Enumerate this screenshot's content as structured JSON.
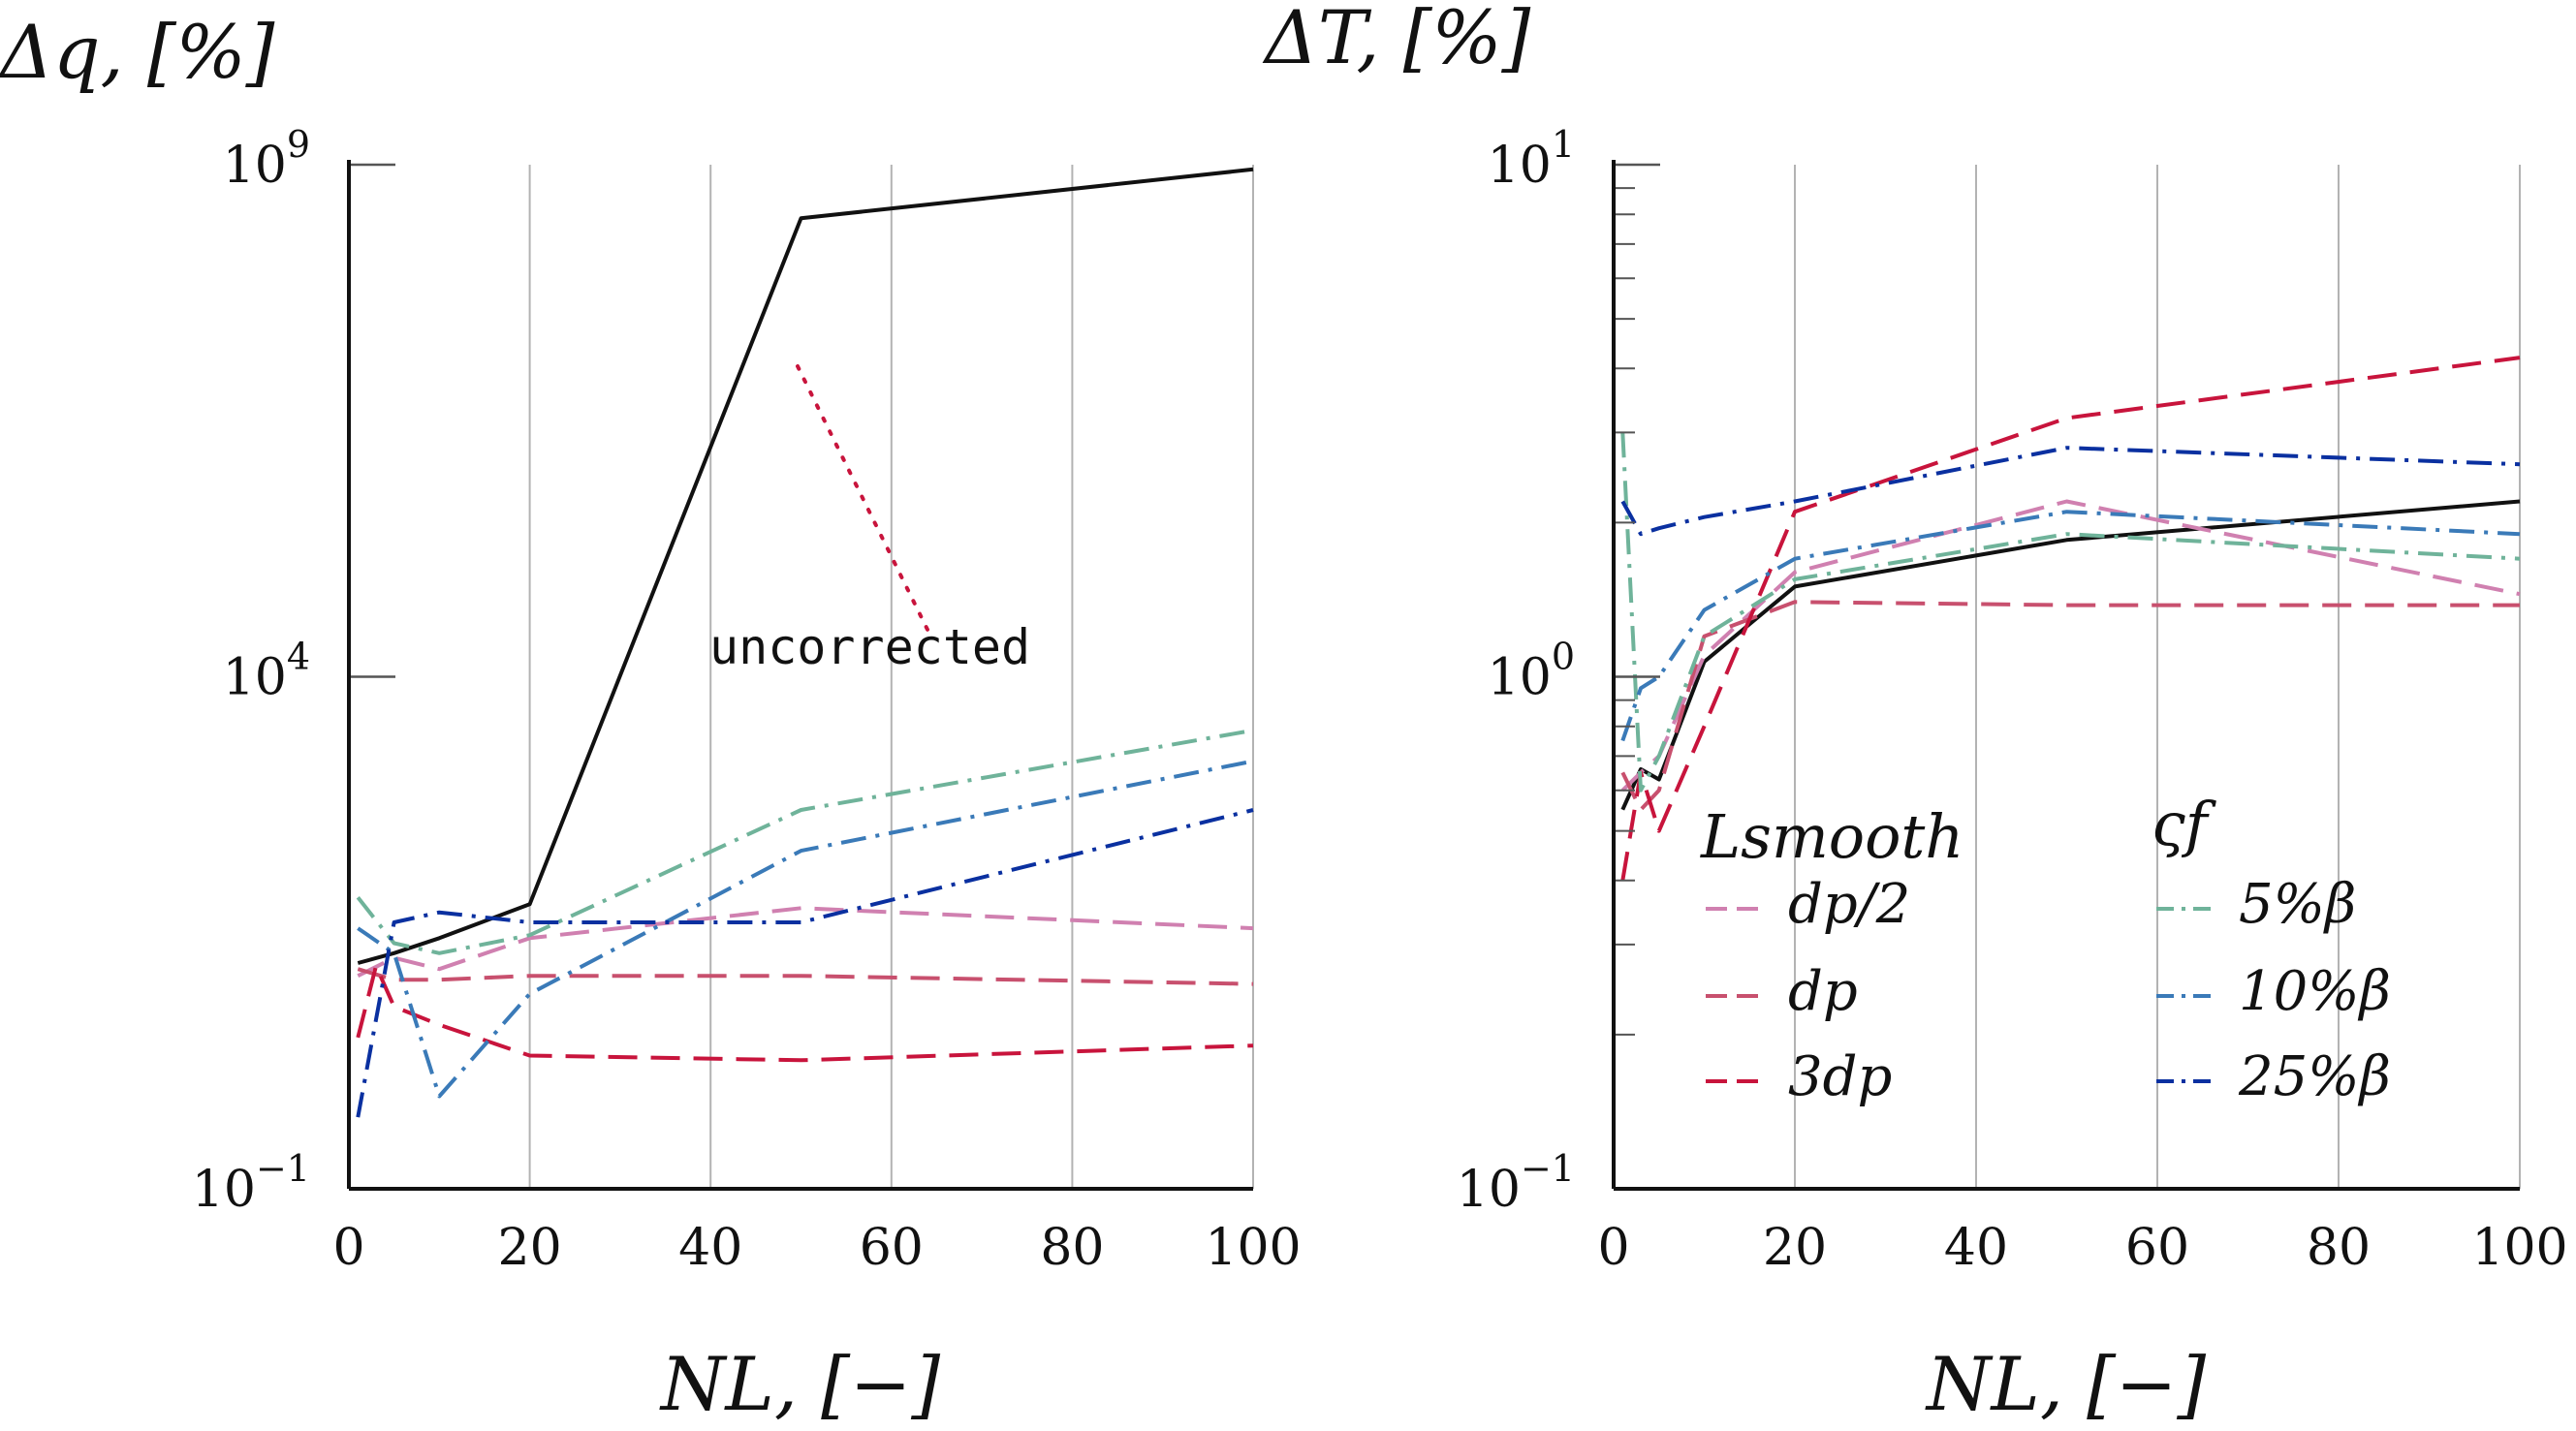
{
  "chart_data": [
    {
      "type": "line",
      "ylabel": "Δq, [%]",
      "xlabel": "NL, [−]",
      "yscale": "log",
      "ylim": [
        0.1,
        1000000000
      ],
      "xlim": [
        0,
        100
      ],
      "xticks": [
        0,
        20,
        40,
        60,
        80,
        100
      ],
      "yticks": [
        {
          "value": 0.1,
          "base": "10",
          "exp": "−1"
        },
        {
          "value": 10000,
          "base": "10",
          "exp": "4"
        },
        {
          "value": 1000000000,
          "base": "10",
          "exp": "9"
        }
      ],
      "annotation": "uncorrected",
      "series": [
        {
          "name": "uncorrected",
          "color": "#111111",
          "dash": "solid",
          "x": [
            1,
            5,
            10,
            20,
            50,
            100
          ],
          "y": [
            16,
            20,
            28,
            60,
            300000000,
            900000000
          ]
        },
        {
          "name": "dp/2",
          "color": "#d080b0",
          "dash": "dashed",
          "x": [
            1,
            5,
            10,
            20,
            50,
            100
          ],
          "y": [
            12,
            18,
            14,
            28,
            55,
            35
          ]
        },
        {
          "name": "dp",
          "color": "#c8506e",
          "dash": "dashed",
          "x": [
            1,
            5,
            10,
            20,
            50,
            100
          ],
          "y": [
            14,
            11,
            11,
            12,
            12,
            10
          ]
        },
        {
          "name": "3dp",
          "color": "#c8143c",
          "dash": "dashed",
          "x": [
            1,
            3,
            5,
            10,
            20,
            50,
            100
          ],
          "y": [
            3,
            15,
            6,
            4,
            2,
            1.8,
            2.5
          ]
        },
        {
          "name": "5%β",
          "color": "#6fb39a",
          "dash": "dashdot",
          "x": [
            1,
            5,
            10,
            20,
            50,
            100
          ],
          "y": [
            70,
            25,
            20,
            30,
            500,
            3000
          ]
        },
        {
          "name": "10%β",
          "color": "#3a7ab8",
          "dash": "dashdot",
          "x": [
            1,
            5,
            10,
            20,
            50,
            100
          ],
          "y": [
            35,
            20,
            0.8,
            8,
            200,
            1500
          ]
        },
        {
          "name": "25%β",
          "color": "#0a30a0",
          "dash": "dashdot",
          "x": [
            1,
            5,
            10,
            20,
            50,
            100
          ],
          "y": [
            0.5,
            40,
            50,
            40,
            40,
            500
          ]
        }
      ]
    },
    {
      "type": "line",
      "ylabel": "ΔT, [%]",
      "xlabel": "NL, [−]",
      "yscale": "log",
      "ylim": [
        0.1,
        10
      ],
      "xlim": [
        0,
        100
      ],
      "xticks": [
        0,
        20,
        40,
        60,
        80,
        100
      ],
      "yticks": [
        {
          "value": 0.1,
          "base": "10",
          "exp": "−1"
        },
        {
          "value": 1,
          "base": "10",
          "exp": "0"
        },
        {
          "value": 10,
          "base": "10",
          "exp": "1"
        }
      ],
      "legend": {
        "placement": "lower-right",
        "group1_title": "Lsmooth",
        "group2_title": "ςf",
        "group1": [
          {
            "label": "dp/2",
            "color": "#d080b0",
            "dash": "dashed"
          },
          {
            "label": "dp",
            "color": "#c8506e",
            "dash": "dashed"
          },
          {
            "label": "3dp",
            "color": "#c8143c",
            "dash": "dashed"
          }
        ],
        "group2": [
          {
            "label": "5%β",
            "color": "#6fb39a",
            "dash": "dashdot"
          },
          {
            "label": "10%β",
            "color": "#3a7ab8",
            "dash": "dashdot"
          },
          {
            "label": "25%β",
            "color": "#0a30a0",
            "dash": "dashdot"
          }
        ]
      },
      "series": [
        {
          "name": "uncorrected",
          "color": "#111111",
          "dash": "solid",
          "x": [
            1,
            3,
            5,
            10,
            20,
            50,
            100
          ],
          "y": [
            0.55,
            0.66,
            0.63,
            1.07,
            1.5,
            1.85,
            2.2
          ]
        },
        {
          "name": "dp/2",
          "color": "#d080b0",
          "dash": "dashed",
          "x": [
            1,
            3,
            5,
            10,
            20,
            50,
            100
          ],
          "y": [
            0.6,
            0.65,
            0.7,
            1.1,
            1.6,
            2.2,
            1.45
          ]
        },
        {
          "name": "dp",
          "color": "#c8506e",
          "dash": "dashed",
          "x": [
            1,
            3,
            5,
            10,
            20,
            50,
            100
          ],
          "y": [
            0.65,
            0.55,
            0.6,
            1.2,
            1.4,
            1.38,
            1.38
          ]
        },
        {
          "name": "3dp",
          "color": "#c8143c",
          "dash": "dashed",
          "x": [
            1,
            3,
            5,
            10,
            20,
            50,
            100
          ],
          "y": [
            0.4,
            0.65,
            0.5,
            0.8,
            2.1,
            3.2,
            4.2
          ]
        },
        {
          "name": "5%β",
          "color": "#6fb39a",
          "dash": "dashdot",
          "x": [
            1,
            3,
            5,
            10,
            20,
            50,
            100
          ],
          "y": [
            3,
            0.6,
            0.7,
            1.2,
            1.55,
            1.9,
            1.7
          ]
        },
        {
          "name": "10%β",
          "color": "#3a7ab8",
          "dash": "dashdot",
          "x": [
            1,
            3,
            5,
            10,
            20,
            50,
            100
          ],
          "y": [
            0.75,
            0.95,
            1.0,
            1.35,
            1.7,
            2.1,
            1.9
          ]
        },
        {
          "name": "25%β",
          "color": "#0a30a0",
          "dash": "dashdot",
          "x": [
            1,
            3,
            5,
            10,
            20,
            50,
            100
          ],
          "y": [
            2.2,
            1.9,
            1.95,
            2.05,
            2.2,
            2.8,
            2.6
          ]
        }
      ]
    }
  ]
}
